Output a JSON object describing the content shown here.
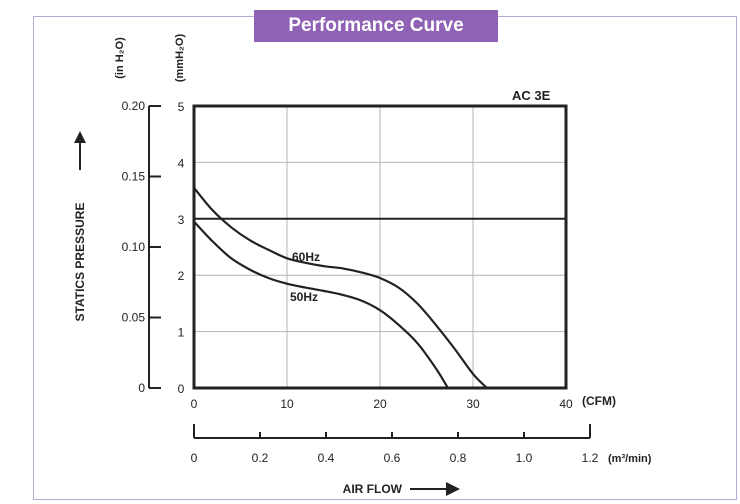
{
  "chart_data": {
    "type": "line",
    "title": "Performance Curve",
    "model": "AC 3E",
    "xlabel": "AIR FLOW",
    "ylabel": "STATICS PRESSURE",
    "x_unit": "(CFM)",
    "x2_unit": "(m³/min)",
    "y_unit": "(mmH₂O)",
    "y2_unit": "(in H₂O)",
    "xlim": [
      0,
      40
    ],
    "ylim": [
      0,
      5
    ],
    "x_ticks": [
      "0",
      "10",
      "20",
      "30",
      "40"
    ],
    "x2_ticks": [
      "0",
      "0.2",
      "0.4",
      "0.6",
      "0.8",
      "1.0",
      "1.2"
    ],
    "y_ticks": [
      "0",
      "1",
      "2",
      "3",
      "4",
      "5"
    ],
    "y2_ticks": [
      "0",
      "0.05",
      "0.10",
      "0.15",
      "0.20"
    ],
    "grid": true,
    "reference_line_y": 3,
    "series": [
      {
        "name": "60Hz",
        "x": [
          0,
          2,
          4,
          6,
          8,
          10,
          12,
          14,
          16,
          18,
          20,
          22,
          24,
          26,
          28,
          30,
          31.5
        ],
        "y": [
          3.55,
          3.15,
          2.85,
          2.62,
          2.45,
          2.3,
          2.22,
          2.16,
          2.12,
          2.05,
          1.95,
          1.78,
          1.5,
          1.12,
          0.7,
          0.25,
          0
        ]
      },
      {
        "name": "50Hz",
        "x": [
          0,
          2,
          4,
          6,
          8,
          10,
          12,
          14,
          16,
          18,
          20,
          22,
          24,
          26,
          27.3
        ],
        "y": [
          2.95,
          2.6,
          2.3,
          2.1,
          1.95,
          1.85,
          1.78,
          1.72,
          1.65,
          1.55,
          1.38,
          1.12,
          0.8,
          0.35,
          0
        ]
      }
    ]
  }
}
